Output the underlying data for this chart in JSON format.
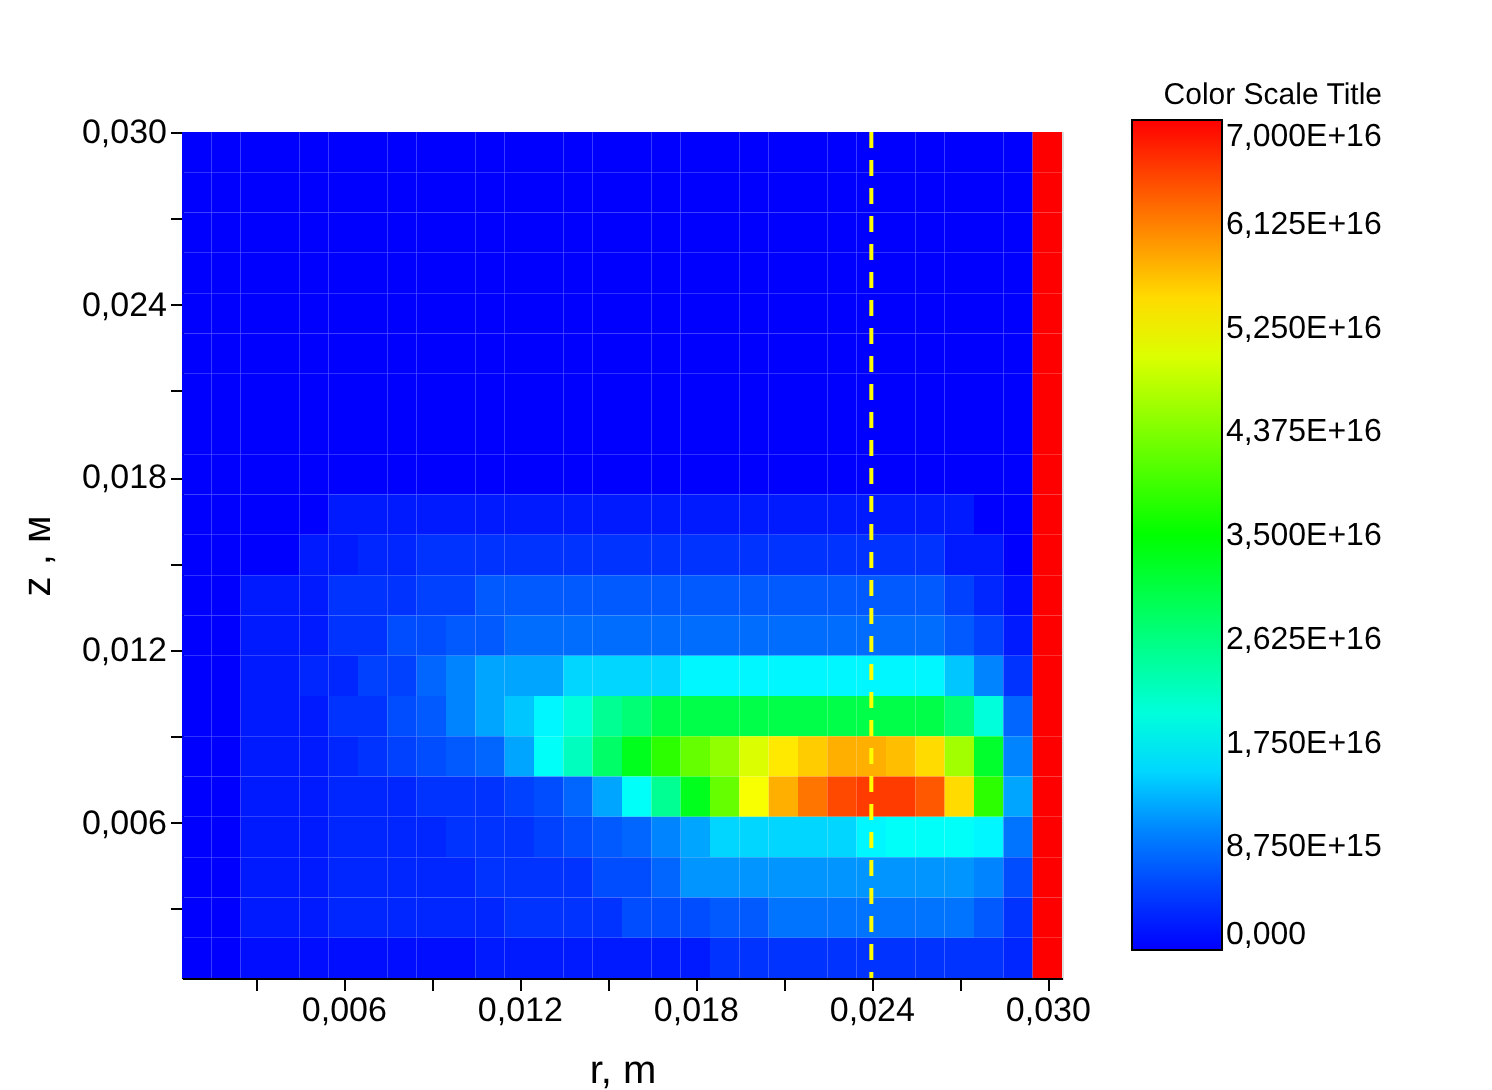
{
  "chart_data": {
    "type": "heatmap",
    "xlabel": "r, m",
    "ylabel": "z , м",
    "clabel": "Color Scale Title",
    "x": [
      0.001,
      0.002,
      0.003,
      0.004,
      0.005,
      0.006,
      0.007,
      0.008,
      0.009,
      0.01,
      0.011,
      0.012,
      0.013,
      0.014,
      0.015,
      0.016,
      0.017,
      0.018,
      0.019,
      0.02,
      0.021,
      0.022,
      0.023,
      0.024,
      0.025,
      0.026,
      0.027,
      0.028,
      0.029,
      0.03
    ],
    "y": [
      0.0293,
      0.0279,
      0.0265,
      0.0251,
      0.0237,
      0.0223,
      0.0209,
      0.0195,
      0.0181,
      0.0167,
      0.0153,
      0.0139,
      0.0125,
      0.0111,
      0.0097,
      0.0083,
      0.0069,
      0.0055,
      0.0041,
      0.0027,
      0.0013
    ],
    "cells": [
      [
        0,
        0,
        0,
        0,
        0,
        0,
        0,
        0,
        0,
        0,
        0,
        0,
        0,
        0,
        0,
        0,
        0,
        0,
        0,
        0,
        0,
        0,
        0,
        0,
        0,
        0,
        0,
        0,
        0,
        7e+16
      ],
      [
        0,
        0,
        0,
        0,
        0,
        0,
        0,
        0,
        0,
        0,
        0,
        0,
        0,
        0,
        0,
        0,
        0,
        0,
        0,
        0,
        0,
        0,
        0,
        0,
        0,
        0,
        0,
        0,
        0,
        7e+16
      ],
      [
        0,
        0,
        0,
        0,
        0,
        0,
        0,
        0,
        0,
        0,
        0,
        0,
        0,
        0,
        0,
        0,
        0,
        0,
        0,
        0,
        0,
        0,
        0,
        0,
        0,
        0,
        0,
        0,
        0,
        7e+16
      ],
      [
        0,
        0,
        0,
        0,
        0,
        0,
        0,
        0,
        0,
        0,
        0,
        0,
        0,
        0,
        0,
        0,
        0,
        0,
        0,
        0,
        0,
        0,
        0,
        0,
        0,
        0,
        0,
        0,
        0,
        7e+16
      ],
      [
        0,
        0,
        0,
        0,
        0,
        0,
        0,
        0,
        0,
        0,
        0,
        0,
        0,
        0,
        0,
        0,
        0,
        0,
        0,
        0,
        0,
        0,
        0,
        0,
        0,
        0,
        0,
        0,
        0,
        7e+16
      ],
      [
        0,
        0,
        0,
        0,
        0,
        0,
        0,
        0,
        0,
        0,
        0,
        0,
        0,
        0,
        0,
        0,
        0,
        0,
        0,
        0,
        0,
        0,
        0,
        0,
        0,
        0,
        0,
        0,
        0,
        7e+16
      ],
      [
        0,
        0,
        0,
        0,
        0,
        0,
        0,
        0,
        0,
        0,
        0,
        0,
        0,
        0,
        0,
        0,
        0,
        0,
        0,
        0,
        0,
        0,
        0,
        0,
        0,
        0,
        0,
        0,
        0,
        7e+16
      ],
      [
        0,
        0,
        0,
        0,
        0,
        0,
        0,
        0,
        0,
        0,
        0,
        0,
        0,
        0,
        0,
        0,
        0,
        0,
        0,
        0,
        0,
        0,
        0,
        0,
        0,
        0,
        0,
        0,
        0,
        7e+16
      ],
      [
        0,
        0,
        0,
        0,
        0,
        0,
        0,
        0,
        0,
        0,
        0,
        0,
        0,
        0,
        0,
        0,
        0,
        0,
        0,
        0,
        0,
        0,
        0,
        0,
        0,
        0,
        0,
        0,
        0,
        7e+16
      ],
      [
        0,
        0,
        0,
        0,
        0,
        2000000000000000.0,
        2000000000000000.0,
        2000000000000000.0,
        2000000000000000.0,
        2000000000000000.0,
        2000000000000000.0,
        2000000000000000.0,
        2000000000000000.0,
        2000000000000000.0,
        2000000000000000.0,
        2000000000000000.0,
        2000000000000000.0,
        2000000000000000.0,
        2000000000000000.0,
        2000000000000000.0,
        2000000000000000.0,
        2000000000000000.0,
        2000000000000000.0,
        2000000000000000.0,
        2000000000000000.0,
        2000000000000000.0,
        2000000000000000.0,
        0,
        0,
        7e+16
      ],
      [
        0,
        0,
        0,
        0,
        2000000000000000.0,
        2000000000000000.0,
        3000000000000000.0,
        3000000000000000.0,
        4000000000000000.0,
        4000000000000000.0,
        4000000000000000.0,
        4000000000000000.0,
        4000000000000000.0,
        4000000000000000.0,
        4000000000000000.0,
        4000000000000000.0,
        4000000000000000.0,
        4000000000000000.0,
        4000000000000000.0,
        4000000000000000.0,
        4000000000000000.0,
        4000000000000000.0,
        4000000000000000.0,
        4000000000000000.0,
        4000000000000000.0,
        4000000000000000.0,
        2000000000000000.0,
        2000000000000000.0,
        0,
        7e+16
      ],
      [
        0,
        0,
        2000000000000000.0,
        2000000000000000.0,
        2000000000000000.0,
        4000000000000000.0,
        4000000000000000.0,
        4000000000000000.0,
        5000000000000000.0,
        5000000000000000.0,
        7000000000000000.0,
        7000000000000000.0,
        7000000000000000.0,
        7000000000000000.0,
        7000000000000000.0,
        7000000000000000.0,
        7000000000000000.0,
        7000000000000000.0,
        7000000000000000.0,
        7000000000000000.0,
        7000000000000000.0,
        7000000000000000.0,
        7000000000000000.0,
        7000000000000000.0,
        7000000000000000.0,
        7000000000000000.0,
        5000000000000000.0,
        3000000000000000.0,
        1000000000000000.0,
        7e+16
      ],
      [
        0,
        0,
        2000000000000000.0,
        2000000000000000.0,
        2000000000000000.0,
        4000000000000000.0,
        4000000000000000.0,
        6000000000000000.0,
        6000000000000000.0,
        7000000000000000.0,
        7000000000000000.0,
        8500000000000000.0,
        8500000000000000.0,
        8500000000000000.0,
        8500000000000000.0,
        8500000000000000.0,
        8500000000000000.0,
        8500000000000000.0,
        8500000000000000.0,
        8500000000000000.0,
        8500000000000000.0,
        8500000000000000.0,
        8500000000000000.0,
        8500000000000000.0,
        8500000000000000.0,
        8500000000000000.0,
        7000000000000000.0,
        5000000000000000.0,
        2000000000000000.0,
        7e+16
      ],
      [
        0,
        0,
        2000000000000000.0,
        2000000000000000.0,
        3000000000000000.0,
        3000000000000000.0,
        5000000000000000.0,
        5000000000000000.0,
        8000000000000000.0,
        1e+16,
        1.2e+16,
        1.2e+16,
        1.2e+16,
        1.5e+16,
        1.5e+16,
        1.5e+16,
        1.5e+16,
        1.7e+16,
        1.7e+16,
        1.7e+16,
        1.7e+16,
        1.7e+16,
        1.7e+16,
        1.7e+16,
        1.7e+16,
        1.7e+16,
        1.4e+16,
        1e+16,
        4000000000000000.0,
        7e+16
      ],
      [
        0,
        0,
        2000000000000000.0,
        2000000000000000.0,
        2000000000000000.0,
        4000000000000000.0,
        4000000000000000.0,
        6000000000000000.0,
        7000000000000000.0,
        1e+16,
        1.2e+16,
        1.4e+16,
        1.7e+16,
        2e+16,
        2.5e+16,
        2.7e+16,
        3e+16,
        3e+16,
        3e+16,
        3e+16,
        3e+16,
        3e+16,
        3e+16,
        3e+16,
        3e+16,
        3e+16,
        2.7e+16,
        2e+16,
        8000000000000000.0,
        7e+16
      ],
      [
        0,
        0,
        2000000000000000.0,
        2000000000000000.0,
        2000000000000000.0,
        3000000000000000.0,
        4000000000000000.0,
        5000000000000000.0,
        6000000000000000.0,
        7000000000000000.0,
        8000000000000000.0,
        1.2e+16,
        1.8e+16,
        2.2e+16,
        2.8e+16,
        3.3e+16,
        3.8e+16,
        4.2e+16,
        4.5e+16,
        5e+16,
        5.4e+16,
        5.6e+16,
        5.8e+16,
        5.8e+16,
        5.7e+16,
        5.5e+16,
        4.6e+16,
        3.2e+16,
        1e+16,
        7e+16
      ],
      [
        0,
        0,
        2000000000000000.0,
        2000000000000000.0,
        2000000000000000.0,
        3000000000000000.0,
        3000000000000000.0,
        3000000000000000.0,
        4000000000000000.0,
        4000000000000000.0,
        4000000000000000.0,
        5000000000000000.0,
        6000000000000000.0,
        8000000000000000.0,
        1.2e+16,
        1.8e+16,
        2.5e+16,
        3.3e+16,
        4.2e+16,
        5.2e+16,
        5.8e+16,
        6.2e+16,
        6.5e+16,
        6.6e+16,
        6.6e+16,
        6.4e+16,
        5.5e+16,
        3.8e+16,
        1.2e+16,
        7e+16
      ],
      [
        0,
        0,
        2000000000000000.0,
        2000000000000000.0,
        2000000000000000.0,
        3000000000000000.0,
        3000000000000000.0,
        3000000000000000.0,
        3000000000000000.0,
        4000000000000000.0,
        4000000000000000.0,
        4000000000000000.0,
        5000000000000000.0,
        6000000000000000.0,
        7000000000000000.0,
        8000000000000000.0,
        1e+16,
        1.2e+16,
        1.5e+16,
        1.5e+16,
        1.5e+16,
        1.5e+16,
        1.5e+16,
        1.7e+16,
        1.8e+16,
        1.8e+16,
        1.8e+16,
        1.7e+16,
        9000000000000000.0,
        7e+16
      ],
      [
        0,
        0,
        2000000000000000.0,
        2000000000000000.0,
        2000000000000000.0,
        3000000000000000.0,
        3000000000000000.0,
        3000000000000000.0,
        3000000000000000.0,
        3000000000000000.0,
        4000000000000000.0,
        4000000000000000.0,
        4000000000000000.0,
        4000000000000000.0,
        6000000000000000.0,
        6000000000000000.0,
        8000000000000000.0,
        1.1e+16,
        1.1e+16,
        1.1e+16,
        1.1e+16,
        1.1e+16,
        1.1e+16,
        1.1e+16,
        1.1e+16,
        1.1e+16,
        1.1e+16,
        1e+16,
        6000000000000000.0,
        7e+16
      ],
      [
        0,
        0,
        2000000000000000.0,
        2000000000000000.0,
        2000000000000000.0,
        3000000000000000.0,
        3000000000000000.0,
        3000000000000000.0,
        3000000000000000.0,
        3000000000000000.0,
        3000000000000000.0,
        4000000000000000.0,
        4000000000000000.0,
        4000000000000000.0,
        4000000000000000.0,
        6000000000000000.0,
        6000000000000000.0,
        6000000000000000.0,
        7000000000000000.0,
        7000000000000000.0,
        9000000000000000.0,
        9000000000000000.0,
        9000000000000000.0,
        9000000000000000.0,
        9000000000000000.0,
        9000000000000000.0,
        9000000000000000.0,
        7000000000000000.0,
        4000000000000000.0,
        7e+16
      ],
      [
        0,
        0,
        1000000000000000.0,
        1000000000000000.0,
        1000000000000000.0,
        1000000000000000.0,
        1000000000000000.0,
        1000000000000000.0,
        1000000000000000.0,
        1000000000000000.0,
        2000000000000000.0,
        2000000000000000.0,
        2000000000000000.0,
        2000000000000000.0,
        2000000000000000.0,
        2000000000000000.0,
        2000000000000000.0,
        2000000000000000.0,
        4000000000000000.0,
        4000000000000000.0,
        4000000000000000.0,
        4000000000000000.0,
        4000000000000000.0,
        4000000000000000.0,
        4000000000000000.0,
        4000000000000000.0,
        4000000000000000.0,
        4000000000000000.0,
        3000000000000000.0,
        7e+16
      ]
    ],
    "xlim": [
      0.0005,
      0.0305
    ],
    "ylim": [
      0.0006,
      0.03
    ],
    "xticks": [
      {
        "value": 0.003,
        "label": null
      },
      {
        "value": 0.006,
        "label": "0,006"
      },
      {
        "value": 0.009,
        "label": null
      },
      {
        "value": 0.012,
        "label": "0,012"
      },
      {
        "value": 0.015,
        "label": null
      },
      {
        "value": 0.018,
        "label": "0,018"
      },
      {
        "value": 0.021,
        "label": null
      },
      {
        "value": 0.024,
        "label": "0,024"
      },
      {
        "value": 0.027,
        "label": null
      },
      {
        "value": 0.03,
        "label": "0,030"
      }
    ],
    "yticks": [
      {
        "value": 0.003,
        "label": null
      },
      {
        "value": 0.006,
        "label": "0,006"
      },
      {
        "value": 0.009,
        "label": null
      },
      {
        "value": 0.012,
        "label": "0,012"
      },
      {
        "value": 0.015,
        "label": null
      },
      {
        "value": 0.018,
        "label": "0,018"
      },
      {
        "value": 0.021,
        "label": null
      },
      {
        "value": 0.024,
        "label": "0,024"
      },
      {
        "value": 0.027,
        "label": null
      },
      {
        "value": 0.03,
        "label": "0,030"
      }
    ],
    "clim": [
      0,
      7e+16
    ],
    "cticks": [
      {
        "value": 0,
        "label": "0,000"
      },
      {
        "value": 8750000000000000.0,
        "label": "8,750E+15"
      },
      {
        "value": 1.75e+16,
        "label": "1,750E+16"
      },
      {
        "value": 2.625e+16,
        "label": "2,625E+16"
      },
      {
        "value": 3.5e+16,
        "label": "3,500E+16"
      },
      {
        "value": 4.375e+16,
        "label": "4,375E+16"
      },
      {
        "value": 5.25e+16,
        "label": "5,250E+16"
      },
      {
        "value": 6.125e+16,
        "label": "6,125E+16"
      },
      {
        "value": 7e+16,
        "label": "7,000E+16"
      }
    ],
    "ref_lines": [
      {
        "axis": "x",
        "value": 0.024,
        "label": null,
        "color": "#ffff00",
        "line_style": "dashed"
      }
    ]
  }
}
